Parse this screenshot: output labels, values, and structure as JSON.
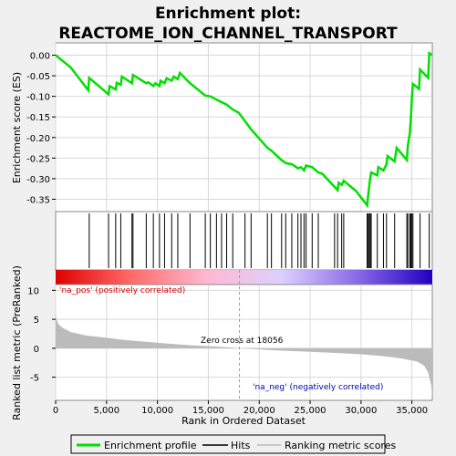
{
  "chart_data": {
    "type": "line",
    "title_line1": "Enrichment plot:",
    "title_line2": "REACTOME_ION_CHANNEL_TRANSPORT",
    "es_panel": {
      "ylabel": "Enrichment score (ES)",
      "ylim": [
        -0.38,
        0.03
      ],
      "yticks": [
        "0.00",
        "-0.05",
        "-0.10",
        "-0.15",
        "-0.20",
        "-0.25",
        "-0.30",
        "-0.35"
      ],
      "ytick_values": [
        0.0,
        -0.05,
        -0.1,
        -0.15,
        -0.2,
        -0.25,
        -0.3,
        -0.35
      ],
      "line_color": "#00e000",
      "points": [
        [
          0,
          0.0
        ],
        [
          1500,
          -0.03
        ],
        [
          3200,
          -0.085
        ],
        [
          3300,
          -0.055
        ],
        [
          5200,
          -0.095
        ],
        [
          5300,
          -0.075
        ],
        [
          5900,
          -0.083
        ],
        [
          6000,
          -0.067
        ],
        [
          6400,
          -0.072
        ],
        [
          6500,
          -0.052
        ],
        [
          7500,
          -0.068
        ],
        [
          7600,
          -0.048
        ],
        [
          8900,
          -0.068
        ],
        [
          9100,
          -0.066
        ],
        [
          9600,
          -0.075
        ],
        [
          9800,
          -0.068
        ],
        [
          10200,
          -0.075
        ],
        [
          10300,
          -0.062
        ],
        [
          10700,
          -0.068
        ],
        [
          10900,
          -0.056
        ],
        [
          11400,
          -0.062
        ],
        [
          11600,
          -0.052
        ],
        [
          12000,
          -0.058
        ],
        [
          12200,
          -0.043
        ],
        [
          13200,
          -0.068
        ],
        [
          13400,
          -0.072
        ],
        [
          14700,
          -0.098
        ],
        [
          15200,
          -0.1
        ],
        [
          15800,
          -0.108
        ],
        [
          16300,
          -0.114
        ],
        [
          16800,
          -0.12
        ],
        [
          17400,
          -0.132
        ],
        [
          18000,
          -0.14
        ],
        [
          19200,
          -0.18
        ],
        [
          20800,
          -0.225
        ],
        [
          21200,
          -0.232
        ],
        [
          22200,
          -0.255
        ],
        [
          22600,
          -0.262
        ],
        [
          23200,
          -0.265
        ],
        [
          23800,
          -0.275
        ],
        [
          24100,
          -0.272
        ],
        [
          24400,
          -0.28
        ],
        [
          24600,
          -0.268
        ],
        [
          25200,
          -0.272
        ],
        [
          25800,
          -0.285
        ],
        [
          26200,
          -0.288
        ],
        [
          27400,
          -0.32
        ],
        [
          27700,
          -0.328
        ],
        [
          27800,
          -0.31
        ],
        [
          28100,
          -0.315
        ],
        [
          28300,
          -0.305
        ],
        [
          29500,
          -0.33
        ],
        [
          30600,
          -0.365
        ],
        [
          30700,
          -0.34
        ],
        [
          30800,
          -0.32
        ],
        [
          30900,
          -0.3
        ],
        [
          31000,
          -0.285
        ],
        [
          31600,
          -0.292
        ],
        [
          31700,
          -0.272
        ],
        [
          32200,
          -0.28
        ],
        [
          32500,
          -0.265
        ],
        [
          32600,
          -0.245
        ],
        [
          33300,
          -0.258
        ],
        [
          33500,
          -0.225
        ],
        [
          34500,
          -0.255
        ],
        [
          34600,
          -0.22
        ],
        [
          34800,
          -0.19
        ],
        [
          34900,
          -0.15
        ],
        [
          35000,
          -0.1
        ],
        [
          35100,
          -0.07
        ],
        [
          35700,
          -0.082
        ],
        [
          35800,
          -0.035
        ],
        [
          36600,
          -0.055
        ],
        [
          36700,
          0.005
        ],
        [
          37000,
          0.0
        ]
      ]
    },
    "hits_panel": {
      "hit_positions": [
        3300,
        5200,
        5900,
        6400,
        7500,
        7600,
        8900,
        9600,
        10200,
        10700,
        11400,
        12000,
        13200,
        14700,
        15200,
        15800,
        16300,
        16800,
        17400,
        18600,
        19200,
        20800,
        21200,
        22200,
        22600,
        23200,
        23800,
        24100,
        24400,
        24600,
        25200,
        25800,
        27400,
        27700,
        28100,
        28300,
        30600,
        30700,
        30800,
        30900,
        31000,
        31600,
        32200,
        32500,
        33300,
        34500,
        34600,
        34800,
        34900,
        35000,
        35100,
        35800,
        36700
      ]
    },
    "gradient_bar": {
      "stops": [
        "#e00000",
        "#ff6a6a",
        "#ffb8d0",
        "#ddd0ff",
        "#8a6ae8",
        "#2200c0"
      ]
    },
    "rank_panel": {
      "ylabel": "Ranked list metric (PreRanked)",
      "ylim": [
        -9,
        11
      ],
      "yticks": [
        "10",
        "5",
        "0",
        "-5"
      ],
      "ytick_values": [
        10,
        5,
        0,
        -5
      ],
      "pos_label": "'na_pos' (positively correlated)",
      "neg_label": "'na_neg' (negatively correlated)",
      "zero_cross_label": "Zero cross at 18056",
      "zero_cross": 18056,
      "fill_color": "#bbbbbb",
      "curve": [
        [
          0,
          6.0
        ],
        [
          100,
          4.9
        ],
        [
          300,
          4.1
        ],
        [
          700,
          3.5
        ],
        [
          1500,
          2.8
        ],
        [
          3000,
          2.2
        ],
        [
          5000,
          1.8
        ],
        [
          7000,
          1.4
        ],
        [
          9000,
          1.1
        ],
        [
          11000,
          0.8
        ],
        [
          13000,
          0.55
        ],
        [
          15000,
          0.35
        ],
        [
          17000,
          0.15
        ],
        [
          18056,
          0.0
        ],
        [
          20000,
          -0.2
        ],
        [
          22000,
          -0.4
        ],
        [
          24000,
          -0.55
        ],
        [
          26000,
          -0.7
        ],
        [
          28000,
          -0.85
        ],
        [
          30000,
          -1.05
        ],
        [
          32000,
          -1.35
        ],
        [
          34000,
          -1.75
        ],
        [
          35500,
          -2.3
        ],
        [
          36200,
          -3.0
        ],
        [
          36600,
          -4.2
        ],
        [
          36900,
          -6.5
        ],
        [
          37000,
          -8.7
        ]
      ]
    },
    "xaxis": {
      "label": "Rank in Ordered Dataset",
      "xlim": [
        0,
        37000
      ],
      "ticks": [
        "0",
        "5,000",
        "10,000",
        "15,000",
        "20,000",
        "25,000",
        "30,000",
        "35,000"
      ],
      "tick_values": [
        0,
        5000,
        10000,
        15000,
        20000,
        25000,
        30000,
        35000
      ]
    },
    "legend": {
      "items": [
        {
          "label": "Enrichment profile",
          "color": "#00e000"
        },
        {
          "label": "Hits",
          "color": "#000000"
        },
        {
          "label": "Ranking metric scores",
          "color": "#bbbbbb"
        }
      ]
    }
  }
}
